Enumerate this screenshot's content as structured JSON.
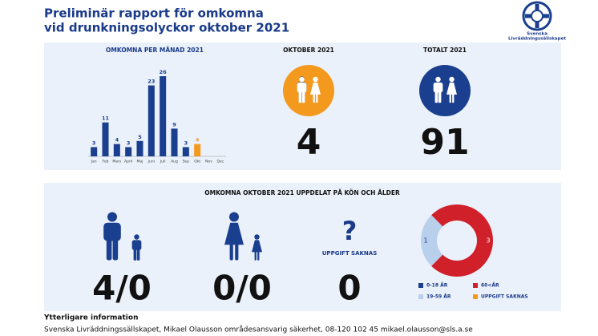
{
  "header": {
    "title_lines": [
      "Preliminär rapport för omkomna",
      "vid drunkningsolyckor oktober 2021"
    ],
    "logo_lines": [
      "Svenska",
      "Livräddningssällskapet"
    ]
  },
  "october": {
    "label": "OKTOBER 2021",
    "value": 4
  },
  "total": {
    "label": "TOTALT 2021",
    "value": 91
  },
  "breakdown": {
    "title": "OMKOMNA OKTOBER 2021 UPPDELAT PÅ KÖN OCH ÅLDER",
    "men": "4/0",
    "women": "0/0",
    "unknown_icon": "?",
    "unknown_label": "UPPGIFT SAKNAS",
    "unknown": 0
  },
  "footer": {
    "heading": "Ytterligare information",
    "text": "Svenska Livräddningssällskapet, Mikael Olausson områdesansvarig säkerhet, 08-120 102 45 mikael.olausson@sls.a.se"
  },
  "chart_data": [
    {
      "type": "bar",
      "title": "OMKOMNA PER MÅNAD 2021",
      "categories": [
        "Jan",
        "Feb",
        "Mars",
        "April",
        "Maj",
        "Juni",
        "Juli",
        "Aug",
        "Sep",
        "Okt",
        "Nov",
        "Dec"
      ],
      "values": [
        3,
        11,
        4,
        3,
        5,
        23,
        26,
        9,
        3,
        4,
        null,
        null
      ],
      "colors": [
        "#1a3f8f",
        "#1a3f8f",
        "#1a3f8f",
        "#1a3f8f",
        "#1a3f8f",
        "#1a3f8f",
        "#1a3f8f",
        "#1a3f8f",
        "#1a3f8f",
        "#f39a1e",
        "#1a3f8f",
        "#1a3f8f"
      ],
      "ylim": [
        0,
        26
      ]
    },
    {
      "type": "pie",
      "donut": true,
      "categories": [
        "0-18 ÅR",
        "19-59 ÅR",
        "60<ÅR",
        "UPPGIFT SAKNAS"
      ],
      "values": [
        0,
        1,
        3,
        0
      ],
      "colors": [
        "#1a3f8f",
        "#b8d0ec",
        "#d0202a",
        "#f39a1e"
      ]
    }
  ]
}
